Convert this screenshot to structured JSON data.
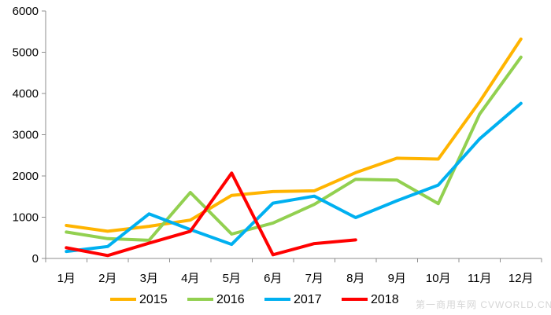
{
  "chart_data": {
    "type": "line",
    "title": "",
    "xlabel": "",
    "ylabel": "",
    "categories": [
      "1月",
      "2月",
      "3月",
      "4月",
      "5月",
      "6月",
      "7月",
      "8月",
      "9月",
      "10月",
      "11月",
      "12月"
    ],
    "ylim": [
      0,
      6000
    ],
    "yticks": [
      0,
      1000,
      2000,
      3000,
      4000,
      5000,
      6000
    ],
    "grid": false,
    "legend_position": "bottom",
    "series": [
      {
        "name": "2015",
        "color": "#FFB400",
        "values": [
          800,
          660,
          780,
          930,
          1530,
          1620,
          1640,
          2080,
          2430,
          2410,
          3800,
          5320
        ]
      },
      {
        "name": "2016",
        "color": "#92D050",
        "values": [
          640,
          480,
          440,
          1600,
          590,
          860,
          1310,
          1920,
          1900,
          1330,
          3500,
          4880
        ]
      },
      {
        "name": "2017",
        "color": "#00B0F0",
        "values": [
          170,
          290,
          1080,
          700,
          340,
          1340,
          1510,
          990,
          1400,
          1780,
          2900,
          3760
        ]
      },
      {
        "name": "2018",
        "color": "#FF0000",
        "values": [
          260,
          70,
          370,
          660,
          2070,
          90,
          360,
          450,
          null,
          null,
          null,
          null
        ]
      }
    ]
  },
  "watermark": "第一商用车网 CVWORLD.CN"
}
